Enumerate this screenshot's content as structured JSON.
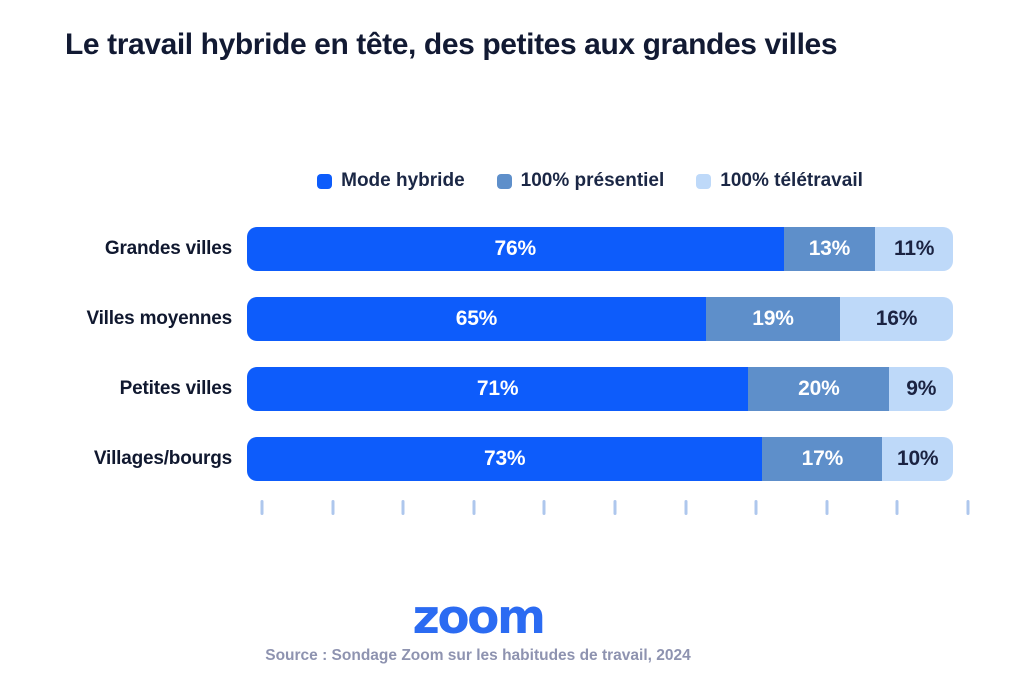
{
  "page": {
    "title": "Le travail hybride en tête, des petites aux grandes villes",
    "title_color": "#121a33",
    "background": "#ffffff"
  },
  "chart_data": {
    "type": "bar",
    "orientation": "horizontal",
    "stacked": true,
    "unit": "%",
    "title": "Le travail hybride en tête, des petites aux grandes villes",
    "categories": [
      "Grandes villes",
      "Villes moyennes",
      "Petites villes",
      "Villages/bourgs"
    ],
    "series": [
      {
        "name": "Mode hybride",
        "color": "#0d5cfb",
        "text_color": "#ffffff",
        "values": [
          76,
          65,
          71,
          73
        ]
      },
      {
        "name": "100% présentiel",
        "color": "#5e8fca",
        "text_color": "#ffffff",
        "values": [
          13,
          19,
          20,
          17
        ]
      },
      {
        "name": "100% télétravail",
        "color": "#bed9f9",
        "text_color": "#1b2342",
        "values": [
          11,
          16,
          9,
          10
        ]
      }
    ],
    "xlim": [
      0,
      100
    ],
    "x_ticks_count": 11,
    "x_tick_labels": [],
    "tick_color": "#aec7ed",
    "value_label_format": "{v}%",
    "legend_position": "top",
    "grid": false,
    "label_color": "#10182f"
  },
  "footer": {
    "logo_text": "zoom",
    "logo_color": "#2b6bf2",
    "source": "Source : Sondage Zoom sur les habitudes de travail, 2024",
    "source_color": "#8e93b0"
  }
}
